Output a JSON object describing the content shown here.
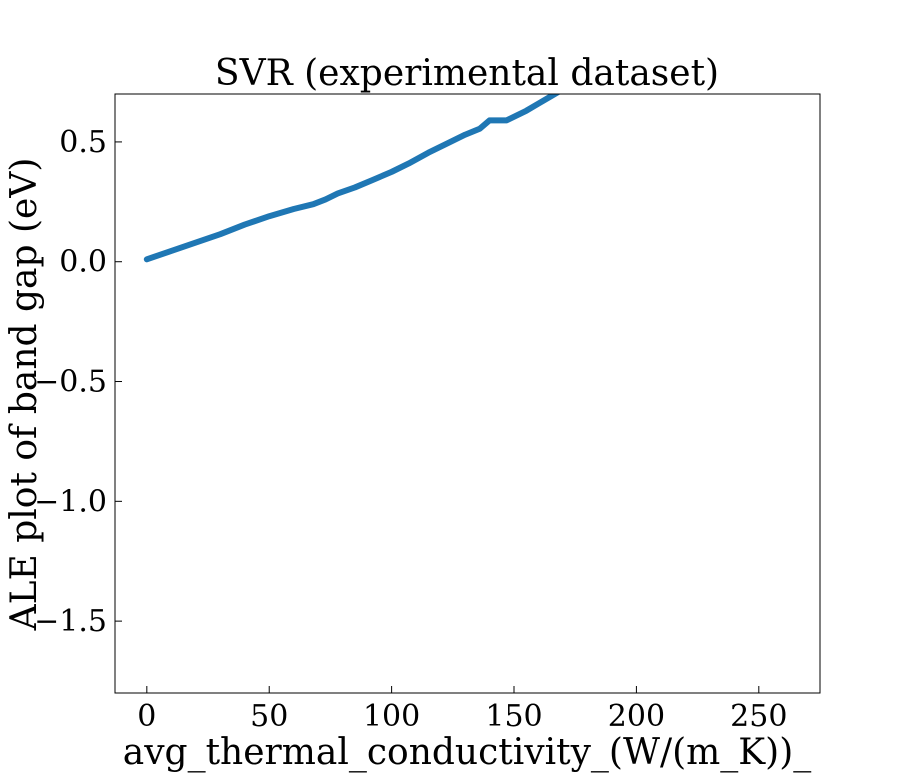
{
  "chart_data": {
    "type": "line",
    "title": "SVR (experimental dataset)",
    "xlabel": "avg_thermal_conductivity_(W/(m_K))_",
    "ylabel": "ALE plot of band gap (eV)",
    "xlim": [
      -13,
      275
    ],
    "ylim": [
      -1.8,
      0.7
    ],
    "xticks": [
      0,
      50,
      100,
      150,
      200,
      250
    ],
    "xtick_labels": [
      "0",
      "50",
      "100",
      "150",
      "200",
      "250"
    ],
    "yticks": [
      -1.5,
      -1.0,
      -0.5,
      0.0,
      0.5
    ],
    "ytick_labels": [
      "−1.5",
      "−1.0",
      "−0.5",
      "0.0",
      "0.5"
    ],
    "grid": false,
    "series": [
      {
        "color": "#1f77b4",
        "x": [
          0,
          10,
          20,
          30,
          40,
          50,
          60,
          68,
          73,
          78,
          85,
          92,
          100,
          107,
          115,
          122,
          130,
          136,
          140,
          143,
          147,
          151,
          155,
          160,
          165,
          170
        ],
        "y": [
          0.01,
          0.045,
          0.08,
          0.115,
          0.155,
          0.19,
          0.22,
          0.24,
          0.26,
          0.285,
          0.31,
          0.34,
          0.375,
          0.41,
          0.455,
          0.49,
          0.53,
          0.555,
          0.59,
          0.59,
          0.59,
          0.61,
          0.63,
          0.66,
          0.69,
          0.72
        ]
      }
    ]
  }
}
